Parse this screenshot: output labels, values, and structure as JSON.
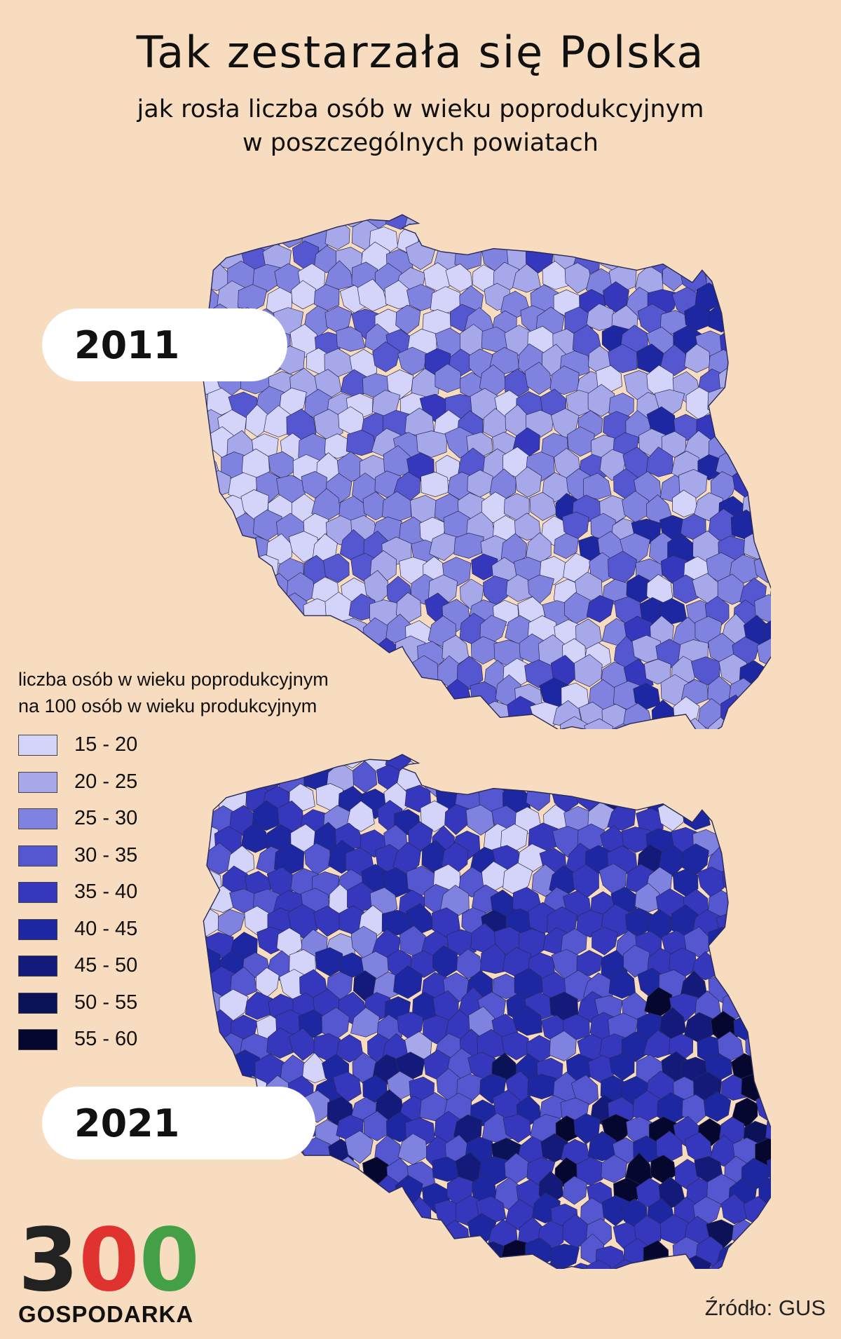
{
  "header": {
    "title": "Tak zestarzała się Polska",
    "subtitle_line1": "jak rosła liczba osób w wieku poprodukcyjnym",
    "subtitle_line2": "w poszczególnych powiatach"
  },
  "maps": [
    {
      "year": "2011",
      "dominant_class": "25 - 30",
      "palette_weights": [
        0.18,
        0.3,
        0.3,
        0.14,
        0.06,
        0.02,
        0,
        0,
        0
      ]
    },
    {
      "year": "2021",
      "dominant_class": "35 - 40",
      "palette_weights": [
        0.005,
        0.015,
        0.08,
        0.22,
        0.38,
        0.22,
        0.06,
        0.015,
        0.005
      ]
    }
  ],
  "legend": {
    "title_line1": "liczba osób w wieku poprodukcyjnym",
    "title_line2": "na 100 osób w wieku produkcyjnym",
    "classes": [
      {
        "label": "15 - 20",
        "color": "#d4d4fa"
      },
      {
        "label": "20 - 25",
        "color": "#a6a8ea"
      },
      {
        "label": "25 - 30",
        "color": "#7f82df"
      },
      {
        "label": "30 - 35",
        "color": "#5457cf"
      },
      {
        "label": "35 - 40",
        "color": "#3537bd"
      },
      {
        "label": "40 - 45",
        "color": "#1e27a2"
      },
      {
        "label": "45 - 50",
        "color": "#131a7a"
      },
      {
        "label": "50 - 55",
        "color": "#0b1258"
      },
      {
        "label": "55 - 60",
        "color": "#05072e"
      }
    ]
  },
  "logo": {
    "digit1": "3",
    "digit2": "0",
    "digit3": "0",
    "digit1_color": "#222222",
    "digit2_color": "#e0322f",
    "digit3_color": "#43a047",
    "text": "GOSPODARKA"
  },
  "source": "Źródło: GUS",
  "colors": {
    "background": "#f8dcbf",
    "border": "#2a2a55"
  }
}
